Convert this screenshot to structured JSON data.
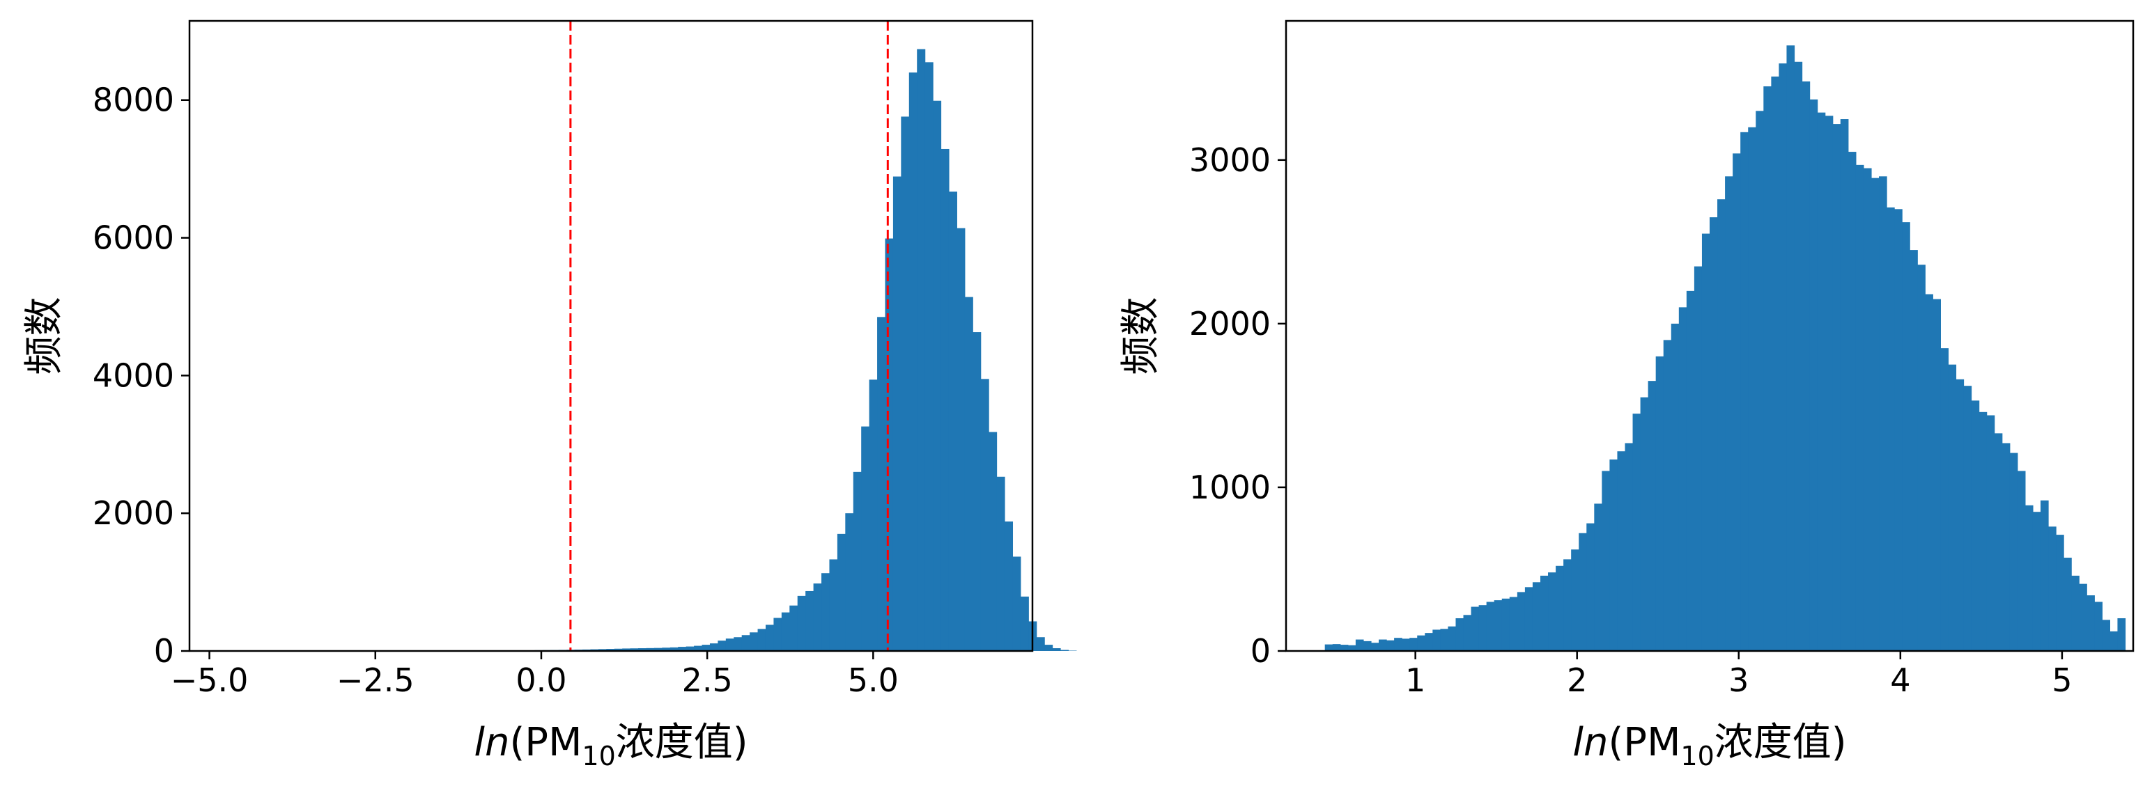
{
  "chart_data": [
    {
      "type": "bar",
      "xlabel_italic": "ln",
      "xlabel_open": "(PM",
      "xlabel_sub": "10",
      "xlabel_close": "浓度值)",
      "ylabel": "频数",
      "xlim": [
        -5.3,
        7.4
      ],
      "ylim": [
        0,
        9150
      ],
      "xticks": [
        -5.0,
        -2.5,
        0.0,
        2.5,
        5.0
      ],
      "xtick_labels": [
        "−5.0",
        "−2.5",
        "0.0",
        "2.5",
        "5.0"
      ],
      "yticks": [
        0,
        2000,
        4000,
        6000,
        8000
      ],
      "ytick_labels": [
        "0",
        "2000",
        "4000",
        "6000",
        "8000"
      ],
      "grid": false,
      "bar_color": "#1f77b4",
      "vlines": [
        {
          "x": 0.44,
          "color": "#ff0000",
          "style": "dashed"
        },
        {
          "x": 5.22,
          "color": "#ff0000",
          "style": "dashed"
        }
      ],
      "bin_start": -4.3,
      "bin_width": 0.12,
      "values": [
        2,
        2,
        2,
        2,
        2,
        2,
        2,
        2,
        3,
        3,
        3,
        3,
        3,
        3,
        3,
        3,
        3,
        4,
        4,
        4,
        4,
        4,
        5,
        5,
        5,
        6,
        6,
        6,
        6,
        7,
        7,
        8,
        9,
        9,
        10,
        11,
        12,
        13,
        15,
        17,
        19,
        21,
        24,
        27,
        30,
        33,
        36,
        38,
        40,
        42,
        44,
        48,
        52,
        60,
        65,
        75,
        90,
        110,
        150,
        180,
        200,
        230,
        270,
        320,
        380,
        480,
        560,
        660,
        800,
        870,
        980,
        1130,
        1330,
        1700,
        2000,
        2600,
        3260,
        3940,
        4850,
        5990,
        6890,
        7760,
        8400,
        8740,
        8550,
        7990,
        7290,
        6670,
        6140,
        5140,
        4630,
        3950,
        3180,
        2530,
        1880,
        1370,
        790,
        430,
        200,
        90,
        40,
        15,
        5
      ]
    },
    {
      "type": "bar",
      "xlabel_italic": "ln",
      "xlabel_open": "(PM",
      "xlabel_sub": "10",
      "xlabel_close": "浓度值)",
      "ylabel": "频数",
      "xlim": [
        0.2,
        5.44
      ],
      "ylim": [
        0,
        3850
      ],
      "xticks": [
        1,
        2,
        3,
        4,
        5
      ],
      "xtick_labels": [
        "1",
        "2",
        "3",
        "4",
        "5"
      ],
      "yticks": [
        0,
        1000,
        2000,
        3000
      ],
      "ytick_labels": [
        "0",
        "1000",
        "2000",
        "3000"
      ],
      "grid": false,
      "bar_color": "#1f77b4",
      "bin_start": 0.44,
      "bin_width": 0.0476,
      "values": [
        40,
        42,
        38,
        35,
        70,
        60,
        50,
        70,
        65,
        80,
        75,
        80,
        95,
        110,
        130,
        135,
        150,
        200,
        220,
        270,
        280,
        300,
        310,
        320,
        330,
        360,
        390,
        420,
        460,
        480,
        520,
        560,
        620,
        720,
        780,
        900,
        1100,
        1170,
        1220,
        1270,
        1450,
        1550,
        1650,
        1800,
        1900,
        2000,
        2100,
        2200,
        2350,
        2550,
        2650,
        2760,
        2900,
        3040,
        3170,
        3200,
        3300,
        3450,
        3510,
        3590,
        3700,
        3600,
        3480,
        3370,
        3290,
        3270,
        3220,
        3250,
        3050,
        2970,
        2950,
        2890,
        2900,
        2710,
        2700,
        2620,
        2450,
        2360,
        2180,
        2150,
        1850,
        1750,
        1660,
        1620,
        1530,
        1460,
        1440,
        1330,
        1270,
        1210,
        1100,
        890,
        850,
        920,
        760,
        710,
        570,
        460,
        410,
        340,
        300,
        190,
        120,
        200
      ]
    }
  ]
}
